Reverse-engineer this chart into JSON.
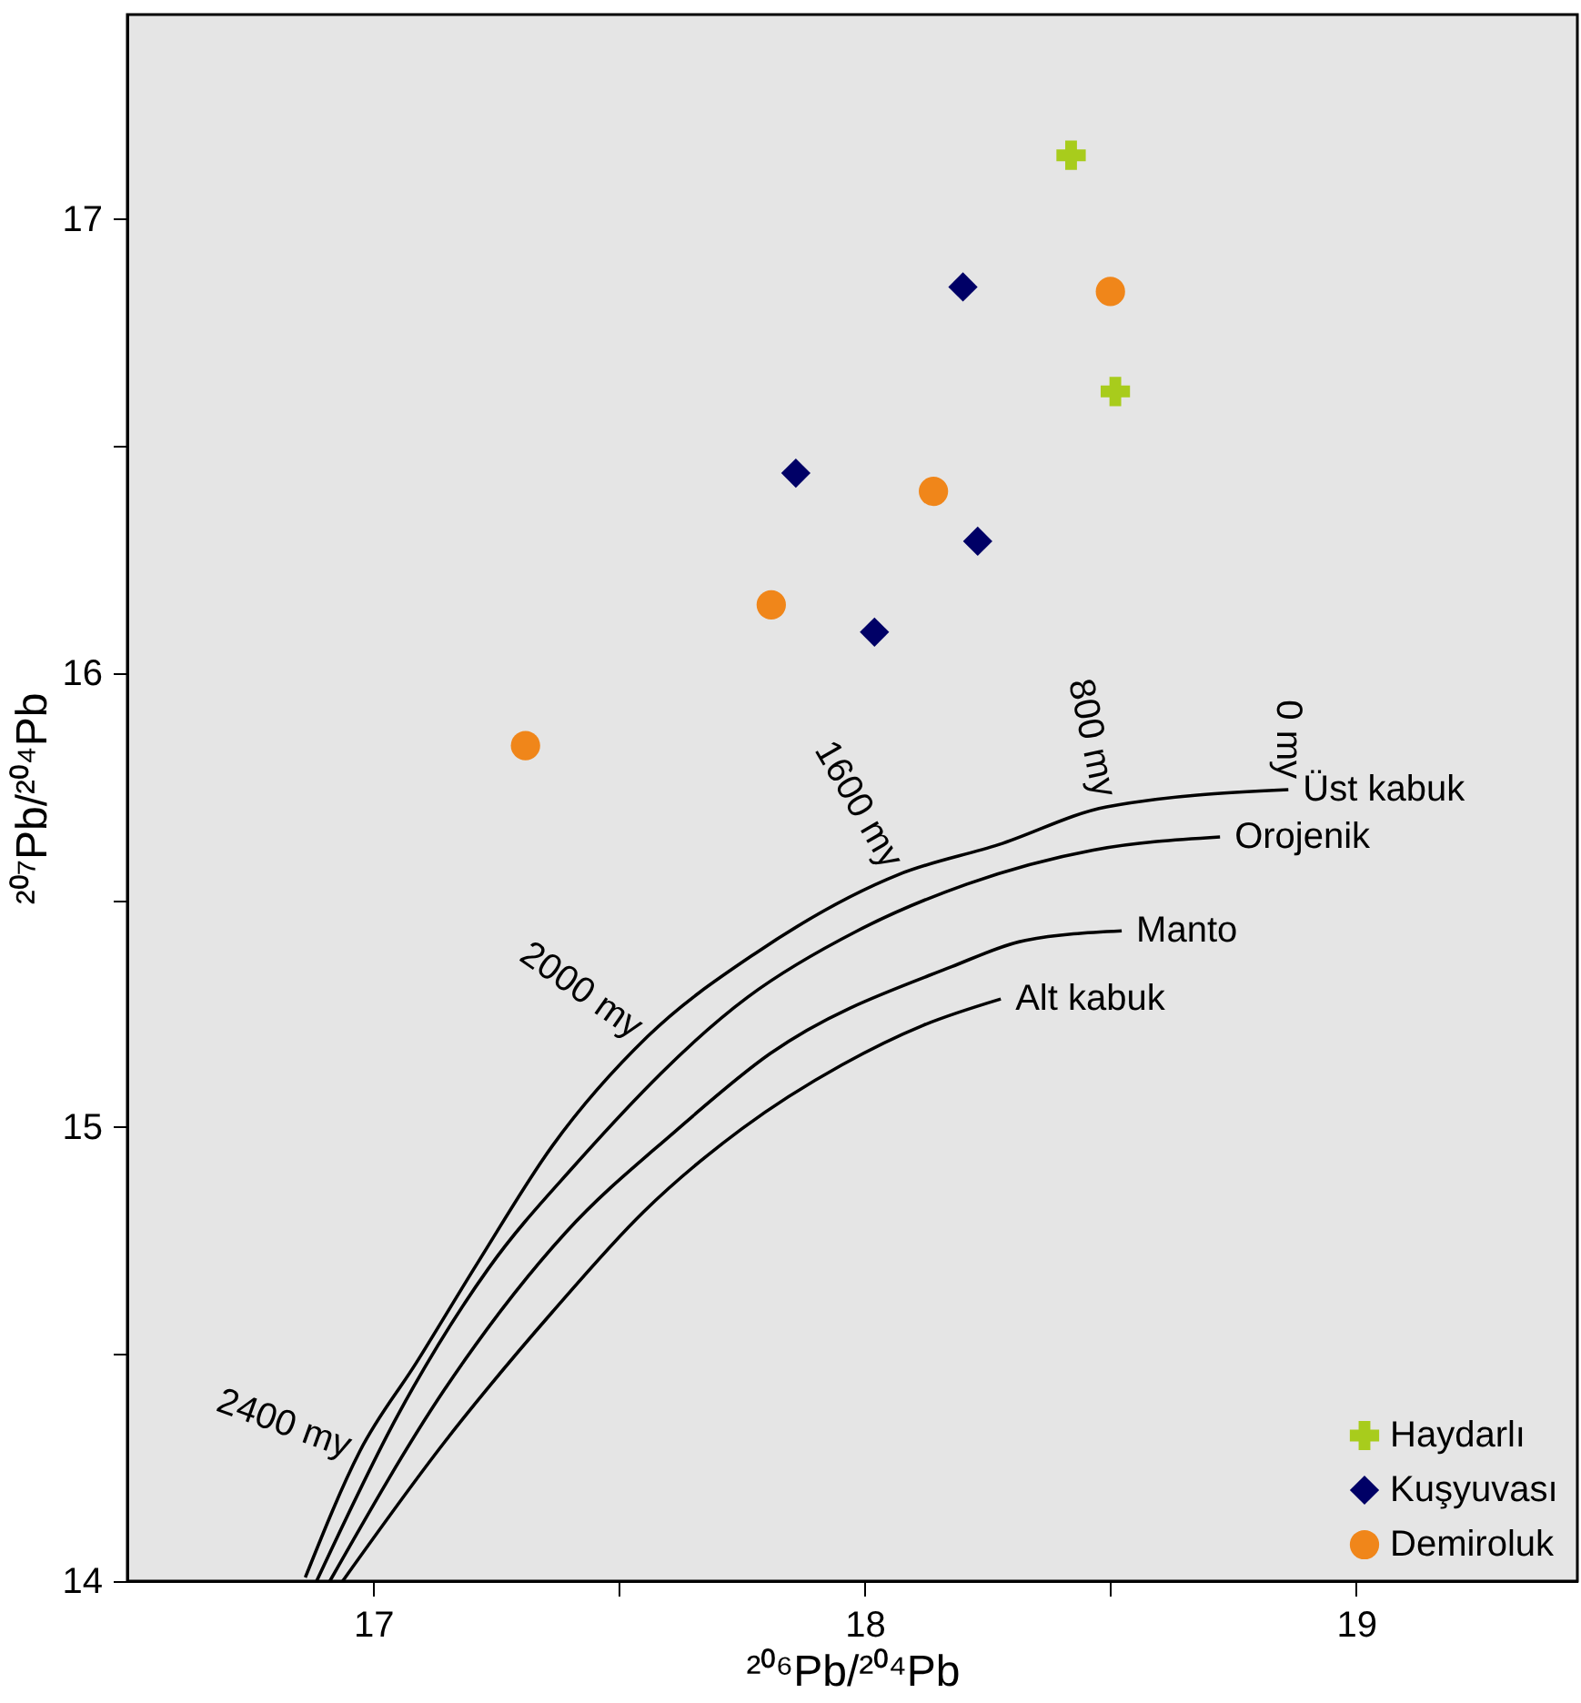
{
  "chart_data": {
    "type": "scatter",
    "xlabel": "²⁰⁶Pb/²⁰⁴Pb",
    "ylabel": "²⁰⁷Pb/²⁰⁴Pb",
    "xlim": [
      16.5,
      19.45
    ],
    "ylim": [
      14,
      17.45
    ],
    "xticks": [
      17,
      {
        "value": 17.5,
        "label": null
      },
      18,
      {
        "value": 18.5,
        "label": null
      },
      19
    ],
    "yticks": [
      14,
      {
        "value": 14.5,
        "label": null
      },
      15,
      {
        "value": 15.5,
        "label": null
      },
      16,
      {
        "value": 16.5,
        "label": null
      },
      17
    ],
    "grid": false,
    "legend": "bottom right",
    "series": [
      {
        "name": "Haydarlı",
        "marker": "cross",
        "color": "#a8cc1c",
        "x": [
          18.42,
          18.51
        ],
        "values": [
          17.14,
          16.62
        ]
      },
      {
        "name": "Kuşyuvası",
        "marker": "diamond",
        "color": "#000066",
        "x": [
          18.2,
          17.86,
          18.23,
          18.02
        ],
        "values": [
          16.85,
          16.44,
          16.29,
          16.09
        ]
      },
      {
        "name": "Demiroluk",
        "marker": "circle",
        "color": "#f0861a",
        "x": [
          18.5,
          18.14,
          17.81,
          17.31
        ],
        "values": [
          16.84,
          16.4,
          16.15,
          15.84
        ]
      },
      {
        "name": "Üst kabuk",
        "type": "line",
        "color": "#000000",
        "x": [
          16.862,
          16.973,
          17.088,
          17.215,
          17.365,
          17.558,
          17.777,
          18.069,
          18.273,
          18.492,
          18.862
        ],
        "values": [
          14.008,
          14.286,
          14.481,
          14.705,
          14.959,
          15.199,
          15.382,
          15.556,
          15.622,
          15.705,
          15.743
        ]
      },
      {
        "name": "Orojenik",
        "type": "line",
        "color": "#000000",
        "x": [
          16.885,
          17.05,
          17.235,
          17.408,
          17.762,
          17.985,
          18.208,
          18.465,
          18.723
        ],
        "values": [
          14.0,
          14.365,
          14.689,
          14.913,
          15.286,
          15.432,
          15.535,
          15.61,
          15.639
        ]
      },
      {
        "name": "Manto",
        "type": "line",
        "color": "#000000",
        "x": [
          16.912,
          17.146,
          17.392,
          17.612,
          17.808,
          18.177,
          18.327,
          18.523
        ],
        "values": [
          14.0,
          14.423,
          14.768,
          14.988,
          15.162,
          15.353,
          15.411,
          15.432
        ]
      },
      {
        "name": "Alt kabuk",
        "type": "line",
        "color": "#000000",
        "x": [
          16.938,
          17.146,
          17.365,
          17.55,
          17.75,
          17.954,
          18.119,
          18.277
        ],
        "values": [
          14.0,
          14.307,
          14.593,
          14.813,
          14.996,
          15.137,
          15.224,
          15.282
        ]
      }
    ],
    "annotations": [
      {
        "text": "0 my",
        "x": 18.862,
        "y": 15.743
      },
      {
        "text": "800 my",
        "x": 18.492,
        "y": 15.705
      },
      {
        "text": "1600 my",
        "x": 18.069,
        "y": 15.556
      },
      {
        "text": "2000 my",
        "x": 17.558,
        "y": 15.199
      },
      {
        "text": "2400 my",
        "x": 16.973,
        "y": 14.286
      }
    ]
  }
}
